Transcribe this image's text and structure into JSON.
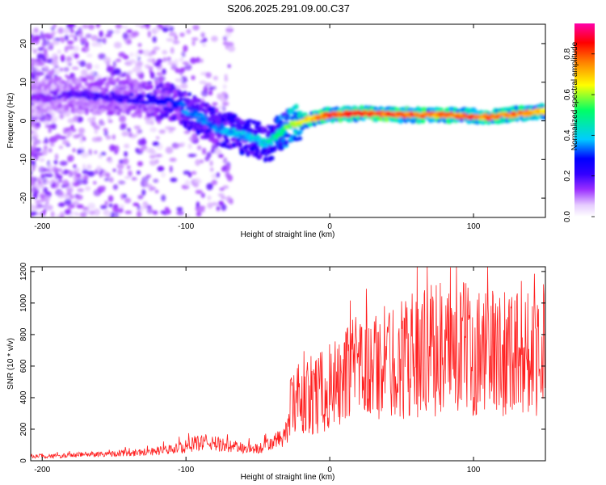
{
  "title": "S206.2025.291.09.00.C37",
  "chart_data": [
    {
      "type": "heatmap",
      "name": "spectrogram",
      "xlabel": "Height of straight line (km)",
      "ylabel": "Frequency (Hz)",
      "xlim": [
        -208,
        150
      ],
      "ylim": [
        -25,
        25
      ],
      "xticks": [
        -200,
        -100,
        0,
        100
      ],
      "yticks": [
        -20,
        -10,
        0,
        10,
        20
      ],
      "xtick_labels": [
        "-200",
        "-100",
        "0",
        "100"
      ],
      "ytick_labels": [
        "-20",
        "-10",
        "0",
        "10",
        "20"
      ],
      "colorbar": {
        "label": "Normalized spectral amplitude",
        "range": [
          0,
          0.95
        ],
        "ticks": [
          0,
          0.2,
          0.4,
          0.6,
          0.8
        ],
        "tick_labels": [
          "0.0",
          "0.2",
          "0.4",
          "0.6",
          "0.8"
        ],
        "colormap": [
          "#ffffff",
          "#e6ccff",
          "#9b30ff",
          "#3300ff",
          "#0000ff",
          "#00ccff",
          "#00ff66",
          "#ffff00",
          "#ff8000",
          "#ff0000",
          "#ff00aa"
        ]
      },
      "ridge": {
        "x": [
          -205,
          -180,
          -160,
          -140,
          -125,
          -110,
          -100,
          -90,
          -80,
          -70,
          -60,
          -50,
          -42,
          -35,
          -25,
          -15,
          0,
          20,
          50,
          80,
          110,
          150
        ],
        "freq": [
          6,
          7,
          6.5,
          6,
          5.5,
          5,
          3,
          1,
          -1.5,
          -2.5,
          -4,
          -5,
          -6,
          -3,
          -1,
          0.5,
          1.5,
          2,
          1.5,
          1.5,
          1,
          2.5
        ],
        "amplitude": [
          0.15,
          0.18,
          0.2,
          0.22,
          0.25,
          0.3,
          0.35,
          0.35,
          0.35,
          0.4,
          0.4,
          0.42,
          0.45,
          0.5,
          0.65,
          0.7,
          0.85,
          0.85,
          0.85,
          0.8,
          0.8,
          0.75
        ]
      }
    },
    {
      "type": "line",
      "name": "snr",
      "xlabel": "Height of straight line (km)",
      "ylabel": "SNR (10 * v/v)",
      "xlim": [
        -208,
        150
      ],
      "ylim": [
        0,
        1230
      ],
      "xticks": [
        -200,
        -100,
        0,
        100
      ],
      "yticks": [
        0,
        200,
        400,
        600,
        800,
        1000,
        1200
      ],
      "xtick_labels": [
        "-200",
        "-100",
        "0",
        "100"
      ],
      "ytick_labels": [
        "0",
        "200",
        "400",
        "600",
        "800",
        "1000",
        "1200"
      ],
      "line_color": "#ff2020",
      "series": [
        {
          "name": "SNR",
          "x": [
            -208,
            -190,
            -170,
            -150,
            -130,
            -110,
            -100,
            -90,
            -80,
            -70,
            -60,
            -50,
            -40,
            -30,
            -27,
            -20,
            -10,
            0,
            10,
            20,
            30,
            40,
            50,
            60,
            70,
            80,
            90,
            100,
            110,
            120,
            130,
            140,
            150
          ],
          "values": [
            30,
            30,
            40,
            45,
            55,
            70,
            90,
            120,
            110,
            90,
            80,
            75,
            110,
            170,
            350,
            380,
            420,
            450,
            530,
            580,
            600,
            620,
            650,
            680,
            700,
            680,
            720,
            700,
            690,
            700,
            720,
            700,
            720
          ]
        }
      ]
    }
  ]
}
